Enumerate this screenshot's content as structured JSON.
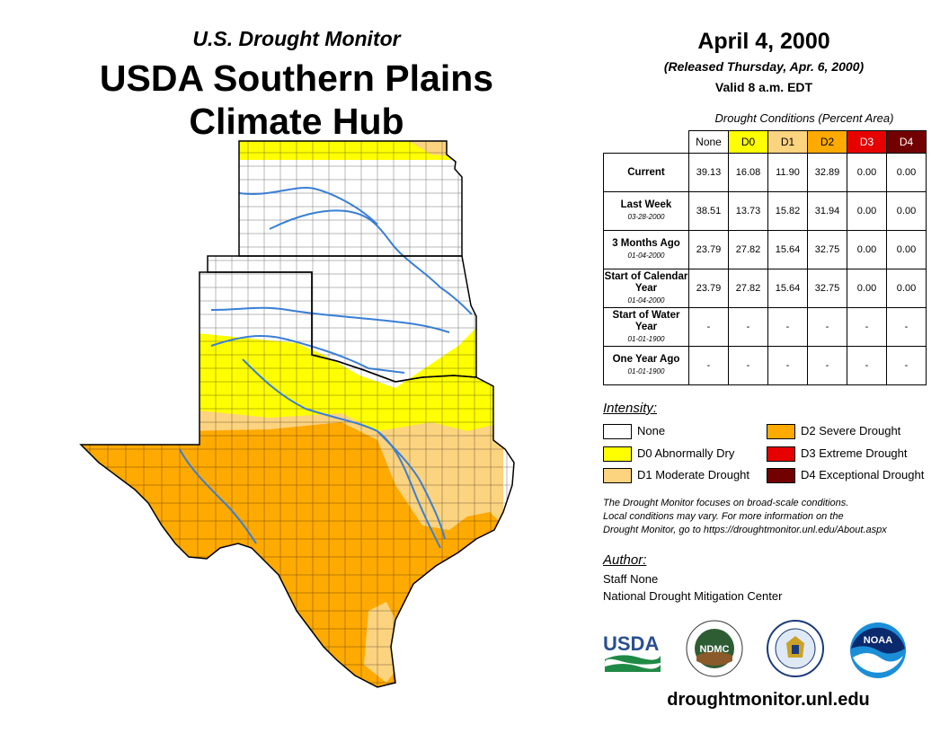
{
  "header": {
    "subtitle": "U.S. Drought Monitor",
    "title_line1": "USDA Southern Plains",
    "title_line2": "Climate Hub"
  },
  "info": {
    "date": "April 4, 2000",
    "released": "(Released Thursday, Apr. 6, 2000)",
    "valid": "Valid 8 a.m. EDT"
  },
  "table": {
    "caption": "Drought Conditions (Percent Area)",
    "columns": [
      "None",
      "D0",
      "D1",
      "D2",
      "D3",
      "D4"
    ],
    "rows": [
      {
        "label": "Current",
        "sublabel": "",
        "values": [
          "39.13",
          "16.08",
          "11.90",
          "32.89",
          "0.00",
          "0.00"
        ]
      },
      {
        "label": "Last Week",
        "sublabel": "03-28-2000",
        "values": [
          "38.51",
          "13.73",
          "15.82",
          "31.94",
          "0.00",
          "0.00"
        ]
      },
      {
        "label": "3 Months Ago",
        "sublabel": "01-04-2000",
        "values": [
          "23.79",
          "27.82",
          "15.64",
          "32.75",
          "0.00",
          "0.00"
        ]
      },
      {
        "label": "Start of Calendar Year",
        "sublabel": "01-04-2000",
        "values": [
          "23.79",
          "27.82",
          "15.64",
          "32.75",
          "0.00",
          "0.00"
        ]
      },
      {
        "label": "Start of Water Year",
        "sublabel": "01-01-1900",
        "values": [
          "-",
          "-",
          "-",
          "-",
          "-",
          "-"
        ]
      },
      {
        "label": "One Year Ago",
        "sublabel": "01-01-1900",
        "values": [
          "-",
          "-",
          "-",
          "-",
          "-",
          "-"
        ]
      }
    ]
  },
  "legend": {
    "title": "Intensity:",
    "items": [
      {
        "label": "None",
        "color": "#ffffff"
      },
      {
        "label": "D0 Abnormally Dry",
        "color": "#ffff00"
      },
      {
        "label": "D1 Moderate Drought",
        "color": "#fcd37f"
      },
      {
        "label": "D2 Severe Drought",
        "color": "#ffaa00"
      },
      {
        "label": "D3 Extreme Drought",
        "color": "#e60000"
      },
      {
        "label": "D4 Exceptional Drought",
        "color": "#730000"
      }
    ]
  },
  "note": {
    "line1": "The Drought Monitor focuses on broad-scale conditions.",
    "line2": "Local conditions may vary. For more information on the",
    "line3": "Drought Monitor, go to https://droughtmonitor.unl.edu/About.aspx"
  },
  "author": {
    "title": "Author:",
    "name": "Staff None",
    "org": "National Drought Mitigation Center"
  },
  "logos": {
    "usda": "USDA",
    "ndmc": "NDMC",
    "noaa": "NOAA"
  },
  "footer": {
    "url": "droughtmonitor.unl.edu"
  },
  "colors": {
    "none": "#ffffff",
    "d0": "#ffff00",
    "d1": "#fcd37f",
    "d2": "#ffaa00",
    "d3": "#e60000",
    "d4": "#730000",
    "water": "#3a7fd5"
  }
}
